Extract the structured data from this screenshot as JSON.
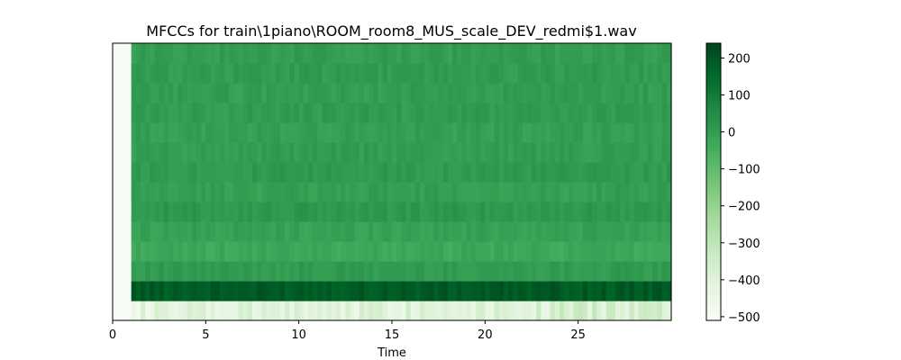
{
  "chart_data": {
    "type": "heatmap",
    "title": "MFCCs for train\\1piano\\ROOM_room8_MUS_scale_DEV_redmi$1.wav",
    "xlabel": "Time",
    "ylabel": "",
    "xlim": [
      0,
      30
    ],
    "xticks": [
      0,
      5,
      10,
      15,
      20,
      25
    ],
    "n_coefficients": 14,
    "first_frame_time": 0.85,
    "colormap": "Greens",
    "colorbar": {
      "min": -510,
      "max": 240,
      "ticks": [
        200,
        100,
        0,
        -100,
        -200,
        -300,
        -400,
        -500
      ]
    },
    "coefficient_means": [
      -430,
      190,
      5,
      -30,
      -10,
      15,
      -5,
      10,
      0,
      -5,
      5,
      0,
      5,
      0
    ],
    "leading_silence_value": -510
  }
}
